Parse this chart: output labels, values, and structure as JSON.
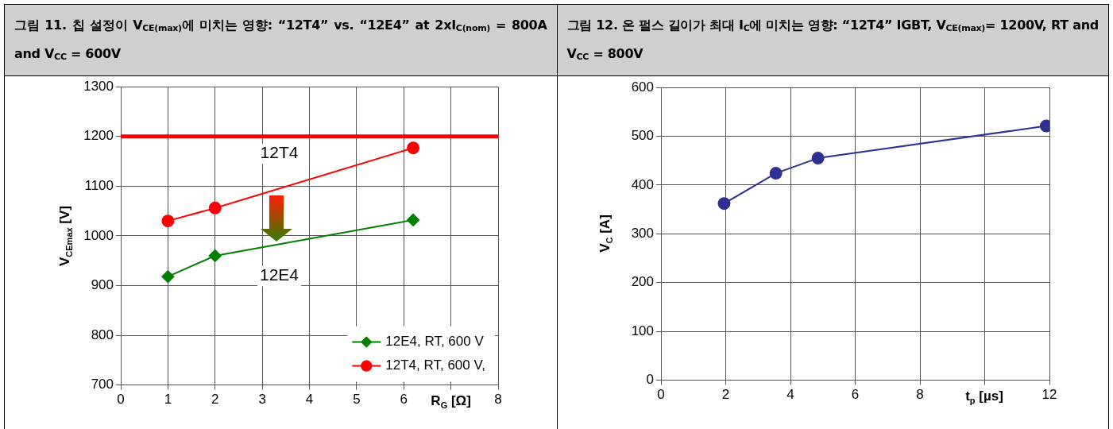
{
  "chart_data": [
    {
      "type": "line",
      "title": "그림 11. 칩 설정이 V$_{CE(max)}$에 미치는 영향: “12T4” vs. “12E4” at 2xI$_{C(nom)}$ = 800A and V$_{CC}$ = 600V",
      "xlabel": "R$_{G}$ [Ω]",
      "ylabel": "V$_{CEmax}$ [V]",
      "xlim": [
        0,
        8
      ],
      "xticks": [
        0,
        1,
        2,
        3,
        4,
        5,
        6,
        {
          "value": 7,
          "label": null
        },
        8
      ],
      "ylim": [
        700,
        1300
      ],
      "yticks": [
        700,
        800,
        900,
        1000,
        1100,
        1200,
        1300
      ],
      "grid": true,
      "legend": "bottom right",
      "series": [
        {
          "name": "12E4, RT, 600 V",
          "color": "#008000",
          "marker": "diamond",
          "x": [
            1,
            2,
            6.2
          ],
          "values": [
            918,
            960,
            1032
          ]
        },
        {
          "name": "12T4, RT, 600 V,",
          "color": "#ff0000",
          "marker": "circle",
          "x": [
            1,
            2,
            6.2
          ],
          "values": [
            1030,
            1056,
            1177
          ]
        }
      ],
      "ref_lines": [
        {
          "axis": "y",
          "value": 1200,
          "color": "#ff0000"
        }
      ],
      "annotations": [
        "12T4",
        "12E4"
      ]
    },
    {
      "type": "line",
      "title": "그림 12. 온 펄스 길이가 최대 I$_{C}$에 미치는 영향: “12T4” IGBT, V$_{CE(max)}$= 1200V, RT and V$_{CC}$ = 800V",
      "xlabel": "t$_{p}$ [µs]",
      "ylabel": "V$_{C}$ [A]",
      "xlim": [
        0,
        12
      ],
      "xticks": [
        0,
        2,
        4,
        6,
        8,
        {
          "value": 10,
          "label": null
        },
        12
      ],
      "ylim": [
        0,
        600
      ],
      "yticks": [
        0,
        100,
        200,
        300,
        400,
        500,
        600
      ],
      "grid": true,
      "marker": "circle",
      "series": [
        {
          "color": "#2e3192",
          "x": [
            1.95,
            3.55,
            4.85,
            11.9
          ],
          "values": [
            362,
            424,
            455,
            521
          ]
        }
      ]
    }
  ]
}
